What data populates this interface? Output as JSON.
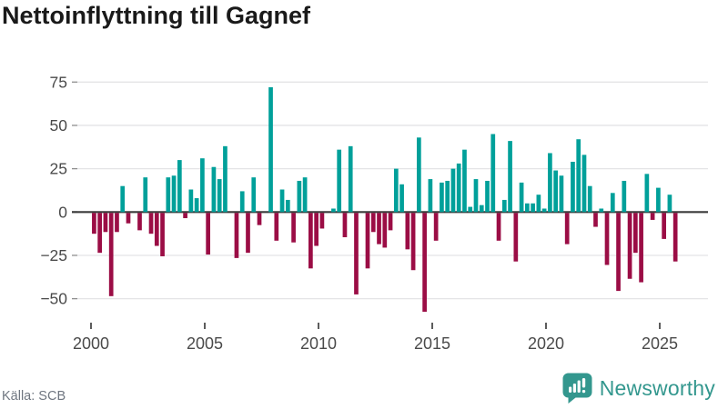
{
  "title": "Nettoinflyttning till Gagnef",
  "footer": {
    "source": "Källa: SCB",
    "brand": "Newsworthy"
  },
  "chart_data": {
    "type": "bar",
    "title": "Nettoinflyttning till Gagnef",
    "frequency": "quarterly",
    "x_start": "2000 Q1",
    "x_end": "2025 Q3",
    "x_tick_years": [
      2000,
      2005,
      2010,
      2015,
      2020,
      2025
    ],
    "x_tick_labels": [
      "2000",
      "2005",
      "2010",
      "2015",
      "2020",
      "2025"
    ],
    "y_ticks": [
      75,
      50,
      25,
      0,
      -25,
      -50
    ],
    "y_tick_labels": [
      "75",
      "50",
      "25",
      "0",
      "−25",
      "−50"
    ],
    "ylim": [
      -62,
      80
    ],
    "grid": true,
    "legend": "none",
    "colors": {
      "positive": "#00a09a",
      "negative": "#9b0d45",
      "grid": "#e4e4e6",
      "zero_axis": "#3c3c3c",
      "tick_text": "#4a4a4a",
      "tick_mark": "#8f8f8f",
      "brand_teal": "#33978e"
    },
    "values": [
      -12,
      -23,
      -11,
      -48,
      -11,
      15,
      -6,
      0,
      -10,
      20,
      -12,
      -19,
      -25,
      20,
      21,
      30,
      -3,
      13,
      8,
      31,
      -24,
      26,
      19,
      38,
      0,
      -26,
      12,
      -23,
      20,
      -7,
      0,
      72,
      -16,
      13,
      7,
      -17,
      18,
      20,
      -32,
      -19,
      -9,
      0,
      2,
      36,
      -14,
      38,
      -47,
      0,
      -32,
      -11,
      -18,
      -20,
      -10,
      25,
      16,
      -21,
      -33,
      43,
      -57,
      19,
      -16,
      17,
      18,
      25,
      28,
      36,
      3,
      19,
      4,
      18,
      45,
      -16,
      7,
      41,
      -28,
      17,
      5,
      5,
      10,
      2,
      34,
      24,
      21,
      -18,
      29,
      42,
      33,
      15,
      -8,
      2,
      -30,
      11,
      -45,
      18,
      -38,
      -23,
      -40,
      22,
      -4,
      14,
      -15,
      10,
      -28
    ]
  }
}
